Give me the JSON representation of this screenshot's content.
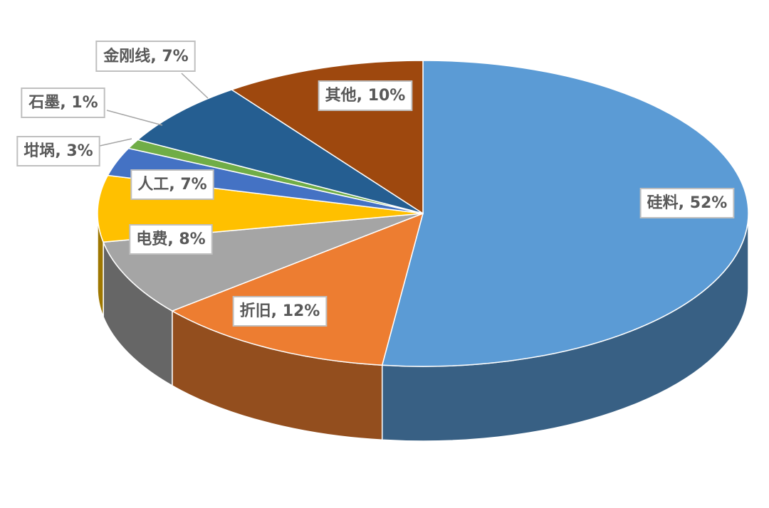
{
  "chart_data": {
    "type": "pie3d",
    "categories": [
      "硅料",
      "折旧",
      "电费",
      "人工",
      "坩埚",
      "石墨",
      "金刚线",
      "其他"
    ],
    "values": [
      52,
      12,
      8,
      7,
      3,
      1,
      7,
      10
    ],
    "value_labels": [
      "52%",
      "12%",
      "8%",
      "7%",
      "3%",
      "1%",
      "7%",
      "10%"
    ],
    "label_separator": ", ",
    "colors": [
      "#5b9bd5",
      "#ed7d31",
      "#a5a5a5",
      "#ffc000",
      "#4472c4",
      "#70ad47",
      "#255e91",
      "#9e480e"
    ]
  }
}
